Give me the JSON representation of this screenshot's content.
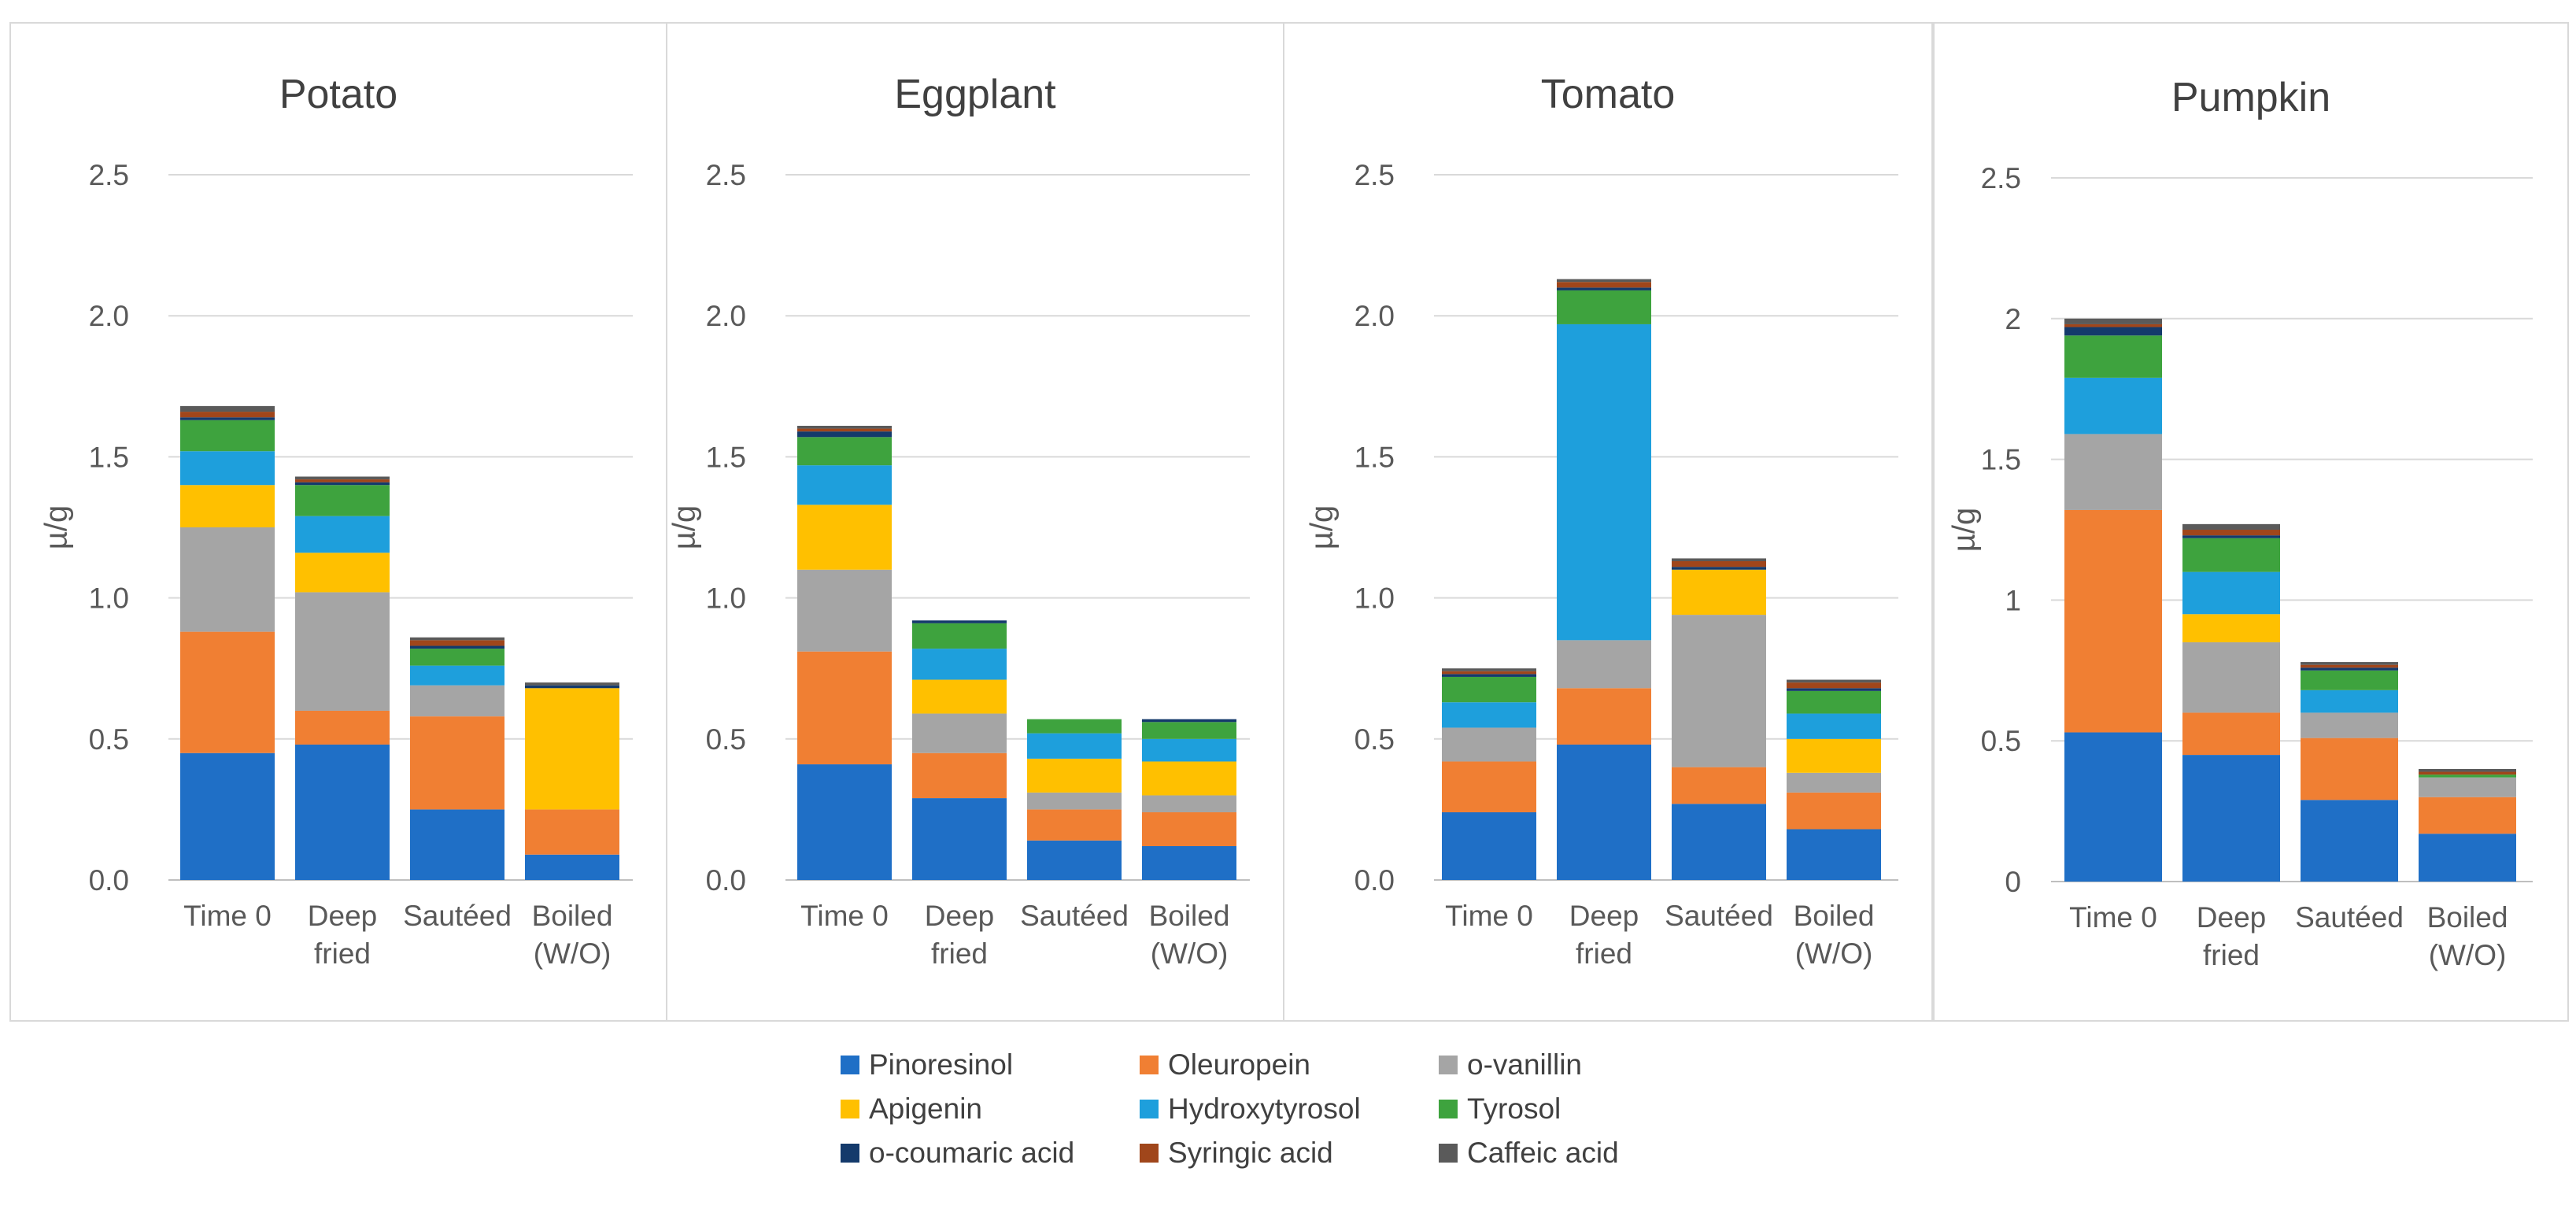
{
  "colors": {
    "Pinoresinol": "#1f6fc6",
    "Oleuropein": "#f07f33",
    "o-vanillin": "#a5a5a5",
    "Apigenin": "#ffc000",
    "Hydroxytyrosol": "#1e9fdc",
    "Tyrosol": "#3ea33e",
    "o-coumaric acid": "#143a6b",
    "Syringic acid": "#a0461b",
    "Caffeic acid": "#5a5a5a"
  },
  "legend": [
    "Pinoresinol",
    "Oleuropein",
    "o-vanillin",
    "Apigenin",
    "Hydroxytyrosol",
    "Tyrosol",
    "o-coumaric acid",
    "Syringic acid",
    "Caffeic acid"
  ],
  "chart_data": [
    {
      "type": "bar",
      "stacked": true,
      "title": "Potato",
      "ylabel": "µ/g",
      "ylim": [
        0,
        2.5
      ],
      "yticks": [
        "0.0",
        "0.5",
        "1.0",
        "1.5",
        "2.0",
        "2.5"
      ],
      "categories": [
        [
          "Time 0"
        ],
        [
          "Deep",
          "fried"
        ],
        [
          "Sautéed"
        ],
        [
          "Boiled",
          "(W/O)"
        ]
      ],
      "series": [
        {
          "name": "Pinoresinol",
          "values": [
            0.45,
            0.48,
            0.25,
            0.09
          ]
        },
        {
          "name": "Oleuropein",
          "values": [
            0.43,
            0.12,
            0.33,
            0.16
          ]
        },
        {
          "name": "o-vanillin",
          "values": [
            0.37,
            0.42,
            0.11,
            0.0
          ]
        },
        {
          "name": "Apigenin",
          "values": [
            0.15,
            0.14,
            0.0,
            0.43
          ]
        },
        {
          "name": "Hydroxytyrosol",
          "values": [
            0.12,
            0.13,
            0.07,
            0.0
          ]
        },
        {
          "name": "Tyrosol",
          "values": [
            0.11,
            0.11,
            0.06,
            0.0
          ]
        },
        {
          "name": "o-coumaric acid",
          "values": [
            0.01,
            0.01,
            0.01,
            0.01
          ]
        },
        {
          "name": "Syringic acid",
          "values": [
            0.02,
            0.01,
            0.02,
            0.0
          ]
        },
        {
          "name": "Caffeic acid",
          "values": [
            0.02,
            0.01,
            0.01,
            0.01
          ]
        }
      ]
    },
    {
      "type": "bar",
      "stacked": true,
      "title": "Eggplant",
      "ylabel": "µ/g",
      "ylim": [
        0,
        2.5
      ],
      "yticks": [
        "0.0",
        "0.5",
        "1.0",
        "1.5",
        "2.0",
        "2.5"
      ],
      "categories": [
        [
          "Time 0"
        ],
        [
          "Deep",
          "fried"
        ],
        [
          "Sautéed"
        ],
        [
          "Boiled",
          "(W/O)"
        ]
      ],
      "series": [
        {
          "name": "Pinoresinol",
          "values": [
            0.41,
            0.29,
            0.14,
            0.12
          ]
        },
        {
          "name": "Oleuropein",
          "values": [
            0.4,
            0.16,
            0.11,
            0.12
          ]
        },
        {
          "name": "o-vanillin",
          "values": [
            0.29,
            0.14,
            0.06,
            0.06
          ]
        },
        {
          "name": "Apigenin",
          "values": [
            0.23,
            0.12,
            0.12,
            0.12
          ]
        },
        {
          "name": "Hydroxytyrosol",
          "values": [
            0.14,
            0.11,
            0.09,
            0.08
          ]
        },
        {
          "name": "Tyrosol",
          "values": [
            0.1,
            0.09,
            0.05,
            0.06
          ]
        },
        {
          "name": "o-coumaric acid",
          "values": [
            0.02,
            0.01,
            0.0,
            0.01
          ]
        },
        {
          "name": "Syringic acid",
          "values": [
            0.01,
            0.0,
            0.0,
            0.0
          ]
        },
        {
          "name": "Caffeic acid",
          "values": [
            0.01,
            0.0,
            0.0,
            0.0
          ]
        }
      ]
    },
    {
      "type": "bar",
      "stacked": true,
      "title": "Tomato",
      "ylabel": "µ/g",
      "ylim": [
        0,
        2.5
      ],
      "yticks": [
        "0.0",
        "0.5",
        "1.0",
        "1.5",
        "2.0",
        "2.5"
      ],
      "categories": [
        [
          "Time 0"
        ],
        [
          "Deep",
          "fried"
        ],
        [
          "Sautéed"
        ],
        [
          "Boiled",
          "(W/O)"
        ]
      ],
      "series": [
        {
          "name": "Pinoresinol",
          "values": [
            0.24,
            0.48,
            0.27,
            0.18
          ]
        },
        {
          "name": "Oleuropein",
          "values": [
            0.18,
            0.2,
            0.13,
            0.13
          ]
        },
        {
          "name": "o-vanillin",
          "values": [
            0.12,
            0.17,
            0.54,
            0.07
          ]
        },
        {
          "name": "Apigenin",
          "values": [
            0.0,
            0.0,
            0.16,
            0.12
          ]
        },
        {
          "name": "Hydroxytyrosol",
          "values": [
            0.09,
            1.12,
            0.0,
            0.09
          ]
        },
        {
          "name": "Tyrosol",
          "values": [
            0.09,
            0.12,
            0.0,
            0.08
          ]
        },
        {
          "name": "o-coumaric acid",
          "values": [
            0.01,
            0.01,
            0.01,
            0.01
          ]
        },
        {
          "name": "Syringic acid",
          "values": [
            0.01,
            0.02,
            0.02,
            0.02
          ]
        },
        {
          "name": "Caffeic acid",
          "values": [
            0.01,
            0.01,
            0.01,
            0.01
          ]
        }
      ]
    },
    {
      "type": "bar",
      "stacked": true,
      "title": "Pumpkin",
      "ylabel": "µ/g",
      "ylim": [
        0,
        2.5
      ],
      "yticks": [
        "0",
        "0.5",
        "1",
        "1.5",
        "2",
        "2.5"
      ],
      "categories": [
        [
          "Time 0"
        ],
        [
          "Deep",
          "fried"
        ],
        [
          "Sautéed"
        ],
        [
          "Boiled",
          "(W/O)"
        ]
      ],
      "series": [
        {
          "name": "Pinoresinol",
          "values": [
            0.53,
            0.45,
            0.29,
            0.17
          ]
        },
        {
          "name": "Oleuropein",
          "values": [
            0.79,
            0.15,
            0.22,
            0.13
          ]
        },
        {
          "name": "o-vanillin",
          "values": [
            0.27,
            0.25,
            0.09,
            0.07
          ]
        },
        {
          "name": "Apigenin",
          "values": [
            0.0,
            0.1,
            0.0,
            0.0
          ]
        },
        {
          "name": "Hydroxytyrosol",
          "values": [
            0.2,
            0.15,
            0.08,
            0.0
          ]
        },
        {
          "name": "Tyrosol",
          "values": [
            0.15,
            0.12,
            0.07,
            0.01
          ]
        },
        {
          "name": "o-coumaric acid",
          "values": [
            0.03,
            0.01,
            0.01,
            0.0
          ]
        },
        {
          "name": "Syringic acid",
          "values": [
            0.01,
            0.02,
            0.01,
            0.01
          ]
        },
        {
          "name": "Caffeic acid",
          "values": [
            0.02,
            0.02,
            0.01,
            0.01
          ]
        }
      ]
    }
  ]
}
